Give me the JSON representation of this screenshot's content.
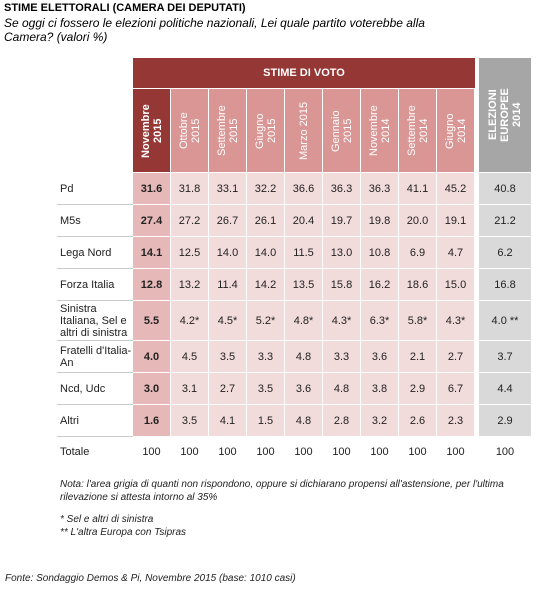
{
  "header": {
    "title": "STIME ELETTORALI (CAMERA DEI DEPUTATI)",
    "subtitle": "Se oggi ci fossero le elezioni politiche nazionali, Lei quale partito voterebbe alla Camera?  (valori %)"
  },
  "table": {
    "group_header": "STIME DI VOTO",
    "columns": [
      "Novembre 2015",
      "Ottobre 2015",
      "Settembre 2015",
      "Giugno 2015",
      "Marzo 2015",
      "Gennaio 2015",
      "Novembre 2014",
      "Settembre 2014",
      "Giugno 2014",
      "ELEZIONI EUROPEE 2014"
    ],
    "rows": [
      {
        "label": "Pd",
        "values": [
          "31.6",
          "31.8",
          "33.1",
          "32.2",
          "36.6",
          "36.3",
          "36.3",
          "41.1",
          "45.2",
          "40.8"
        ]
      },
      {
        "label": "M5s",
        "values": [
          "27.4",
          "27.2",
          "26.7",
          "26.1",
          "20.4",
          "19.7",
          "19.8",
          "20.0",
          "19.1",
          "21.2"
        ]
      },
      {
        "label": "Lega Nord",
        "values": [
          "14.1",
          "12.5",
          "14.0",
          "14.0",
          "11.5",
          "13.0",
          "10.8",
          "6.9",
          "4.7",
          "6.2"
        ]
      },
      {
        "label": "Forza Italia",
        "values": [
          "12.8",
          "13.2",
          "11.4",
          "14.2",
          "13.5",
          "15.8",
          "16.2",
          "18.6",
          "15.0",
          "16.8"
        ]
      },
      {
        "label": "Sinistra Italiana, Sel e altri di sinistra",
        "values": [
          "5.5",
          "4.2*",
          "4.5*",
          "5.2*",
          "4.8*",
          "4.3*",
          "6.3*",
          "5.8*",
          "4.3*",
          "4.0 **"
        ]
      },
      {
        "label": "Fratelli d'Italia-An",
        "values": [
          "4.0",
          "4.5",
          "3.5",
          "3.3",
          "4.8",
          "3.3",
          "3.6",
          "2.1",
          "2.7",
          "3.7"
        ]
      },
      {
        "label": "Ncd, Udc",
        "values": [
          "3.0",
          "3.1",
          "2.7",
          "3.5",
          "3.6",
          "4.8",
          "3.8",
          "2.9",
          "6.7",
          "4.4"
        ]
      },
      {
        "label": "Altri",
        "values": [
          "1.6",
          "3.5",
          "4.1",
          "1.5",
          "4.8",
          "2.8",
          "3.2",
          "2.6",
          "2.3",
          "2.9"
        ]
      },
      {
        "label": "Totale",
        "values": [
          "100",
          "100",
          "100",
          "100",
          "100",
          "100",
          "100",
          "100",
          "100",
          "100"
        ]
      }
    ]
  },
  "notes": {
    "main": "Nota: l'area grigia di quanti non rispondono, oppure si dichiarano propensi all'astensione, per l'ultima rilevazione si attesta intorno al 35%",
    "footnote1": "* Sel e altri di sinistra",
    "footnote2": "** L'altra Europa con Tsipras",
    "source": "Fonte: Sondaggio Demos & Pi, Novembre 2015 (base: 1010 casi)"
  }
}
